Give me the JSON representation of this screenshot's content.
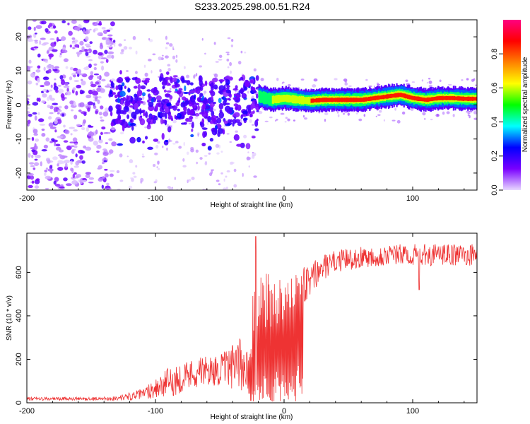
{
  "figure_title": "S233.2025.298.00.51.R24",
  "chart_data": [
    {
      "type": "heatmap",
      "title": "S233.2025.298.00.51.R24",
      "xlabel": "Height of straight line (km)",
      "ylabel": "Frequency (Hz)",
      "xlim": [
        -200,
        150
      ],
      "ylim": [
        -25,
        25
      ],
      "xticks": [
        -200,
        -100,
        0,
        100
      ],
      "xtick_labels": [
        "-200",
        "-100",
        "0",
        "100"
      ],
      "yticks": [
        -20,
        -10,
        0,
        10,
        20
      ],
      "ytick_labels": [
        "-20",
        "-10",
        "0",
        "10",
        "20"
      ],
      "colorbar": {
        "label": "Normalized spectral amplitude",
        "range": [
          0,
          1
        ],
        "ticks": [
          0,
          0.2,
          0.4,
          0.6,
          0.8
        ],
        "tick_labels": [
          "0.0",
          "0.2",
          "0.4",
          "0.6",
          "0.8"
        ],
        "colors": [
          "#e8d8ff",
          "#7a00ff",
          "#0000ff",
          "#00ffff",
          "#00ff00",
          "#ffff00",
          "#ff8000",
          "#ff0000",
          "#ff0080"
        ]
      },
      "regions": [
        {
          "x_range": [
            -200,
            -135
          ],
          "freq_range": [
            -25,
            25
          ],
          "amplitude": "low, scattered"
        },
        {
          "x_range": [
            -135,
            -20
          ],
          "freq_range": [
            -15,
            10
          ],
          "amplitude": "low-moderate"
        },
        {
          "x_range": [
            -20,
            150
          ],
          "freq_center": 1.5,
          "amplitude": "high, narrow band"
        }
      ],
      "band_ridge": {
        "x": [
          -20,
          -10,
          0,
          10,
          20,
          30,
          40,
          50,
          60,
          70,
          80,
          90,
          100,
          110,
          120,
          130,
          140,
          150
        ],
        "freq": [
          2.5,
          1.5,
          2,
          1.5,
          1.2,
          1.5,
          1.5,
          1.5,
          1.5,
          2,
          2.5,
          3,
          2,
          1.5,
          2,
          2,
          1.8,
          1.8
        ],
        "amplitude": [
          0.45,
          0.55,
          0.6,
          0.75,
          0.8,
          0.85,
          0.9,
          0.9,
          0.85,
          0.8,
          0.85,
          0.9,
          0.8,
          0.85,
          0.9,
          0.85,
          0.8,
          0.8
        ]
      }
    },
    {
      "type": "line",
      "xlabel": "Height of straight line (km)",
      "ylabel": "SNR (10 * v/v)",
      "xlim": [
        -200,
        150
      ],
      "ylim": [
        0,
        780
      ],
      "xticks": [
        -200,
        -100,
        0,
        100
      ],
      "xtick_labels": [
        "-200",
        "-100",
        "0",
        "100"
      ],
      "yticks": [
        0,
        200,
        400,
        600
      ],
      "ytick_labels": [
        "0",
        "200",
        "400",
        "600"
      ],
      "series": [
        {
          "name": "SNR",
          "color": "#ee3333",
          "envelope": {
            "x": [
              -200,
              -150,
              -130,
              -110,
              -100,
              -90,
              -70,
              -50,
              -35,
              -25,
              -20,
              -10,
              0,
              10,
              20,
              30,
              40,
              60,
              80,
              100,
              120,
              150
            ],
            "base": [
              18,
              18,
              20,
              40,
              70,
              90,
              140,
              150,
              170,
              200,
              300,
              350,
              380,
              460,
              560,
              620,
              650,
              670,
              680,
              680,
              680,
              680
            ],
            "amp": [
              8,
              8,
              10,
              25,
              50,
              70,
              70,
              70,
              120,
              200,
              300,
              250,
              220,
              150,
              80,
              60,
              50,
              50,
              50,
              50,
              50,
              50
            ]
          },
          "annotations": [
            {
              "x": -22,
              "y": 760,
              "note": "spike"
            },
            {
              "x": 105,
              "y": 520,
              "note": "dip"
            }
          ]
        }
      ]
    }
  ]
}
